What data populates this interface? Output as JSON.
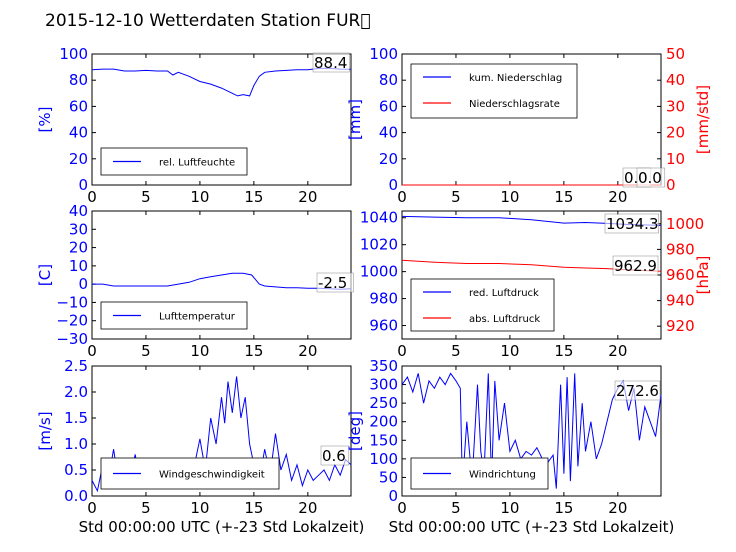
{
  "figure": {
    "title": "2015-12-10 Wetterdaten Station FUR\u0000"
  },
  "colors": {
    "primary": "#0000ff",
    "secondary": "#ff0000",
    "axes": "#000000"
  },
  "chart_data": [
    {
      "type": "line",
      "ylabel": "[%]",
      "xlim": [
        0,
        24
      ],
      "ylim": [
        0,
        100
      ],
      "xticks": [
        "0",
        "5",
        "10",
        "15",
        "20"
      ],
      "yticks": [
        "0",
        "20",
        "40",
        "60",
        "80",
        "100"
      ],
      "legend": {
        "entries": [
          "rel. Luftfeuchte"
        ],
        "placement": "lower-left"
      },
      "current_value": "88.4",
      "series": [
        {
          "name": "rel. Luftfeuchte",
          "points": [
            [
              0,
              88
            ],
            [
              1,
              88.5
            ],
            [
              2,
              88.5
            ],
            [
              3,
              87
            ],
            [
              4,
              87
            ],
            [
              5,
              87.5
            ],
            [
              6,
              87
            ],
            [
              7,
              87
            ],
            [
              7.5,
              84
            ],
            [
              8,
              86
            ],
            [
              9,
              83
            ],
            [
              10,
              79
            ],
            [
              11,
              77
            ],
            [
              12,
              74
            ],
            [
              13,
              70
            ],
            [
              13.5,
              68
            ],
            [
              14,
              69
            ],
            [
              14.6,
              68
            ],
            [
              15,
              76
            ],
            [
              15.5,
              83
            ],
            [
              16,
              86
            ],
            [
              17,
              87
            ],
            [
              18,
              87.5
            ],
            [
              19,
              88
            ],
            [
              20,
              88
            ],
            [
              21,
              89
            ],
            [
              22,
              89
            ],
            [
              23,
              88.5
            ],
            [
              24,
              88.4
            ]
          ]
        }
      ]
    },
    {
      "type": "line",
      "ylabel": "[mm]",
      "ylabel_right": "[mm/std]",
      "xlim": [
        0,
        24
      ],
      "ylim": [
        0,
        100
      ],
      "ylim_right": [
        0,
        50
      ],
      "xticks": [
        "0",
        "5",
        "10",
        "15",
        "20"
      ],
      "yticks": [
        "0",
        "20",
        "40",
        "60",
        "80",
        "100"
      ],
      "yticks_right": [
        "0",
        "10",
        "20",
        "30",
        "40",
        "50"
      ],
      "legend": {
        "entries": [
          "kum. Niederschlag",
          "Niederschlagsrate"
        ],
        "placement": "top-left"
      },
      "current_value": "0.0",
      "current_value_2": "0.0",
      "series": [
        {
          "name": "kum. Niederschlag",
          "points": [
            [
              0,
              0
            ],
            [
              24,
              0
            ]
          ]
        },
        {
          "name": "Niederschlagsrate",
          "points": [
            [
              0,
              0
            ],
            [
              24,
              0
            ]
          ]
        }
      ]
    },
    {
      "type": "line",
      "ylabel": "[C]",
      "xlim": [
        0,
        24
      ],
      "ylim": [
        -30,
        40
      ],
      "xticks": [
        "0",
        "5",
        "10",
        "15",
        "20"
      ],
      "yticks": [
        "−30",
        "−20",
        "−10",
        "0",
        "10",
        "20",
        "30",
        "40"
      ],
      "legend": {
        "entries": [
          "Lufttemperatur"
        ],
        "placement": "lower-left"
      },
      "current_value": "-2.5",
      "series": [
        {
          "name": "Lufttemperatur",
          "points": [
            [
              0,
              0
            ],
            [
              1,
              0
            ],
            [
              2,
              -1
            ],
            [
              3,
              -1
            ],
            [
              4,
              -1
            ],
            [
              5,
              -1
            ],
            [
              6,
              -1
            ],
            [
              7,
              -1
            ],
            [
              8,
              0
            ],
            [
              9,
              1
            ],
            [
              10,
              3
            ],
            [
              11,
              4
            ],
            [
              12,
              5
            ],
            [
              13,
              6
            ],
            [
              14,
              6
            ],
            [
              14.8,
              5
            ],
            [
              15.5,
              0
            ],
            [
              16,
              -1
            ],
            [
              17,
              -1.5
            ],
            [
              18,
              -2
            ],
            [
              19,
              -2
            ],
            [
              20,
              -2.2
            ],
            [
              21,
              -2.3
            ],
            [
              22,
              -2.5
            ],
            [
              23,
              -2.8
            ],
            [
              24,
              -2.5
            ]
          ]
        }
      ]
    },
    {
      "type": "line",
      "ylabel_right": "[hPa]",
      "xlim": [
        0,
        24
      ],
      "ylim": [
        950,
        1045
      ],
      "ylim_right": [
        910,
        1010
      ],
      "xticks": [
        "0",
        "5",
        "10",
        "15",
        "20"
      ],
      "yticks": [
        "960",
        "980",
        "1000",
        "1020",
        "1040"
      ],
      "yticks_right": [
        "920",
        "940",
        "960",
        "980",
        "1000"
      ],
      "legend": {
        "entries": [
          "red. Luftdruck",
          "abs. Luftdruck"
        ],
        "placement": "lower-left"
      },
      "current_value": "1034.3",
      "current_value_2": "962.9",
      "series": [
        {
          "name": "red. Luftdruck",
          "points": [
            [
              0,
              1041
            ],
            [
              3,
              1040.5
            ],
            [
              6,
              1040
            ],
            [
              9,
              1040
            ],
            [
              12,
              1038.5
            ],
            [
              15,
              1036
            ],
            [
              17,
              1036.5
            ],
            [
              19,
              1035.8
            ],
            [
              21,
              1035
            ],
            [
              24,
              1034.3
            ]
          ]
        },
        {
          "name": "abs. Luftdruck",
          "points": [
            [
              0,
              971.5
            ],
            [
              3,
              970
            ],
            [
              6,
              969
            ],
            [
              9,
              969
            ],
            [
              12,
              968
            ],
            [
              15,
              966
            ],
            [
              17,
              965.5
            ],
            [
              19,
              965
            ],
            [
              21,
              964
            ],
            [
              24,
              962.9
            ]
          ]
        }
      ]
    },
    {
      "type": "line",
      "xlabel": "Std 00:00:00 UTC (+-23 Std Lokalzeit)",
      "ylabel": "[m/s]",
      "xlim": [
        0,
        24
      ],
      "ylim": [
        0,
        2.5
      ],
      "xticks": [
        "0",
        "5",
        "10",
        "15",
        "20"
      ],
      "yticks": [
        "0.0",
        "0.5",
        "1.0",
        "1.5",
        "2.0",
        "2.5"
      ],
      "legend": {
        "entries": [
          "Windgeschwindigkeit"
        ],
        "placement": "lower-left"
      },
      "current_value": "0.6",
      "series": [
        {
          "name": "Windgeschwindigkeit",
          "points": [
            [
              0,
              0.3
            ],
            [
              0.5,
              0.1
            ],
            [
              1,
              0.6
            ],
            [
              1.5,
              0.3
            ],
            [
              2,
              0.9
            ],
            [
              2.5,
              0.2
            ],
            [
              3,
              0.7
            ],
            [
              3.5,
              0.3
            ],
            [
              4,
              0.8
            ],
            [
              4.5,
              0.2
            ],
            [
              5,
              0.6
            ],
            [
              5.5,
              0.4
            ],
            [
              6,
              0.5
            ],
            [
              6.5,
              0.2
            ],
            [
              7,
              0.4
            ],
            [
              7.5,
              0.3
            ],
            [
              8,
              0.3
            ],
            [
              8.5,
              0.7
            ],
            [
              9,
              0.2
            ],
            [
              9.5,
              0.6
            ],
            [
              10,
              1.1
            ],
            [
              10.5,
              0.5
            ],
            [
              11,
              1.5
            ],
            [
              11.5,
              1.0
            ],
            [
              12,
              1.9
            ],
            [
              12.3,
              1.4
            ],
            [
              12.6,
              2.2
            ],
            [
              13,
              1.6
            ],
            [
              13.4,
              2.3
            ],
            [
              13.8,
              1.5
            ],
            [
              14.2,
              1.9
            ],
            [
              14.6,
              1.0
            ],
            [
              15,
              0.6
            ],
            [
              15.5,
              0.3
            ],
            [
              16,
              0.9
            ],
            [
              16.5,
              0.4
            ],
            [
              17,
              1.2
            ],
            [
              17.5,
              0.5
            ],
            [
              18,
              0.8
            ],
            [
              18.5,
              0.3
            ],
            [
              19,
              0.6
            ],
            [
              19.5,
              0.2
            ],
            [
              20,
              0.5
            ],
            [
              20.5,
              0.3
            ],
            [
              21,
              0.4
            ],
            [
              21.5,
              0.5
            ],
            [
              22,
              0.3
            ],
            [
              22.5,
              0.6
            ],
            [
              23,
              0.4
            ],
            [
              23.5,
              0.7
            ],
            [
              24,
              0.6
            ]
          ]
        }
      ]
    },
    {
      "type": "line",
      "xlabel": "Std 00:00:00 UTC (+-23 Std Lokalzeit)",
      "ylabel": "[deg]",
      "xlim": [
        0,
        24
      ],
      "ylim": [
        0,
        350
      ],
      "xticks": [
        "0",
        "5",
        "10",
        "15",
        "20"
      ],
      "yticks": [
        "0",
        "50",
        "100",
        "150",
        "200",
        "250",
        "300",
        "350"
      ],
      "legend": {
        "entries": [
          "Windrichtung"
        ],
        "placement": "lower-left"
      },
      "current_value": "272.6",
      "series": [
        {
          "name": "Windrichtung",
          "points": [
            [
              0,
              300
            ],
            [
              0.5,
              320
            ],
            [
              1,
              280
            ],
            [
              1.5,
              330
            ],
            [
              2,
              250
            ],
            [
              2.5,
              310
            ],
            [
              3,
              290
            ],
            [
              3.5,
              320
            ],
            [
              4,
              300
            ],
            [
              4.5,
              330
            ],
            [
              5,
              310
            ],
            [
              5.4,
              290
            ],
            [
              5.6,
              30
            ],
            [
              6,
              200
            ],
            [
              6.5,
              40
            ],
            [
              7,
              300
            ],
            [
              7.3,
              120
            ],
            [
              7.6,
              60
            ],
            [
              8,
              330
            ],
            [
              8.3,
              40
            ],
            [
              8.6,
              310
            ],
            [
              9,
              150
            ],
            [
              9.5,
              250
            ],
            [
              10,
              120
            ],
            [
              10.5,
              150
            ],
            [
              11,
              100
            ],
            [
              11.5,
              120
            ],
            [
              12,
              110
            ],
            [
              12.5,
              130
            ],
            [
              13,
              100
            ],
            [
              13.5,
              90
            ],
            [
              14,
              110
            ],
            [
              14.3,
              20
            ],
            [
              14.7,
              300
            ],
            [
              15,
              60
            ],
            [
              15.3,
              320
            ],
            [
              15.6,
              40
            ],
            [
              16,
              330
            ],
            [
              16.3,
              80
            ],
            [
              16.7,
              250
            ],
            [
              17,
              120
            ],
            [
              17.5,
              200
            ],
            [
              18,
              100
            ],
            [
              18.5,
              140
            ],
            [
              19,
              200
            ],
            [
              19.5,
              260
            ],
            [
              20,
              290
            ],
            [
              20.5,
              310
            ],
            [
              21,
              230
            ],
            [
              21.5,
              290
            ],
            [
              22,
              150
            ],
            [
              22.5,
              240
            ],
            [
              23,
              200
            ],
            [
              23.5,
              160
            ],
            [
              24,
              272.6
            ]
          ]
        }
      ]
    }
  ]
}
